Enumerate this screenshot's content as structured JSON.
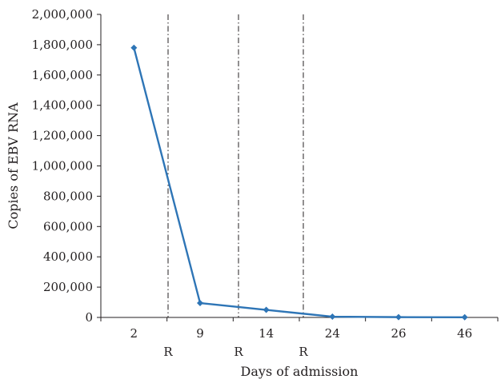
{
  "chart_data": {
    "type": "line",
    "title": "",
    "xlabel": "Days of admission",
    "ylabel": "Copies of EBV RNA",
    "categories": [
      "2",
      "9",
      "14",
      "24",
      "26",
      "46"
    ],
    "series": [
      {
        "values": [
          1780000,
          95000,
          50000,
          5000,
          2000,
          1000
        ]
      }
    ],
    "ylim": [
      0,
      2000000
    ],
    "yticks": [
      "0",
      "200,000",
      "400,000",
      "600,000",
      "800,000",
      "1,000,000",
      "1,200,000",
      "1,400,000",
      "1,600,000",
      "1,800,000",
      "2,000,000"
    ],
    "grid": false,
    "legend": "none",
    "series_color": "#2e75b6",
    "reference_lines": [
      {
        "after_category": 0,
        "label": "R"
      },
      {
        "after_category": 1,
        "label": "R"
      },
      {
        "after_category": 2,
        "label": "R"
      }
    ]
  }
}
